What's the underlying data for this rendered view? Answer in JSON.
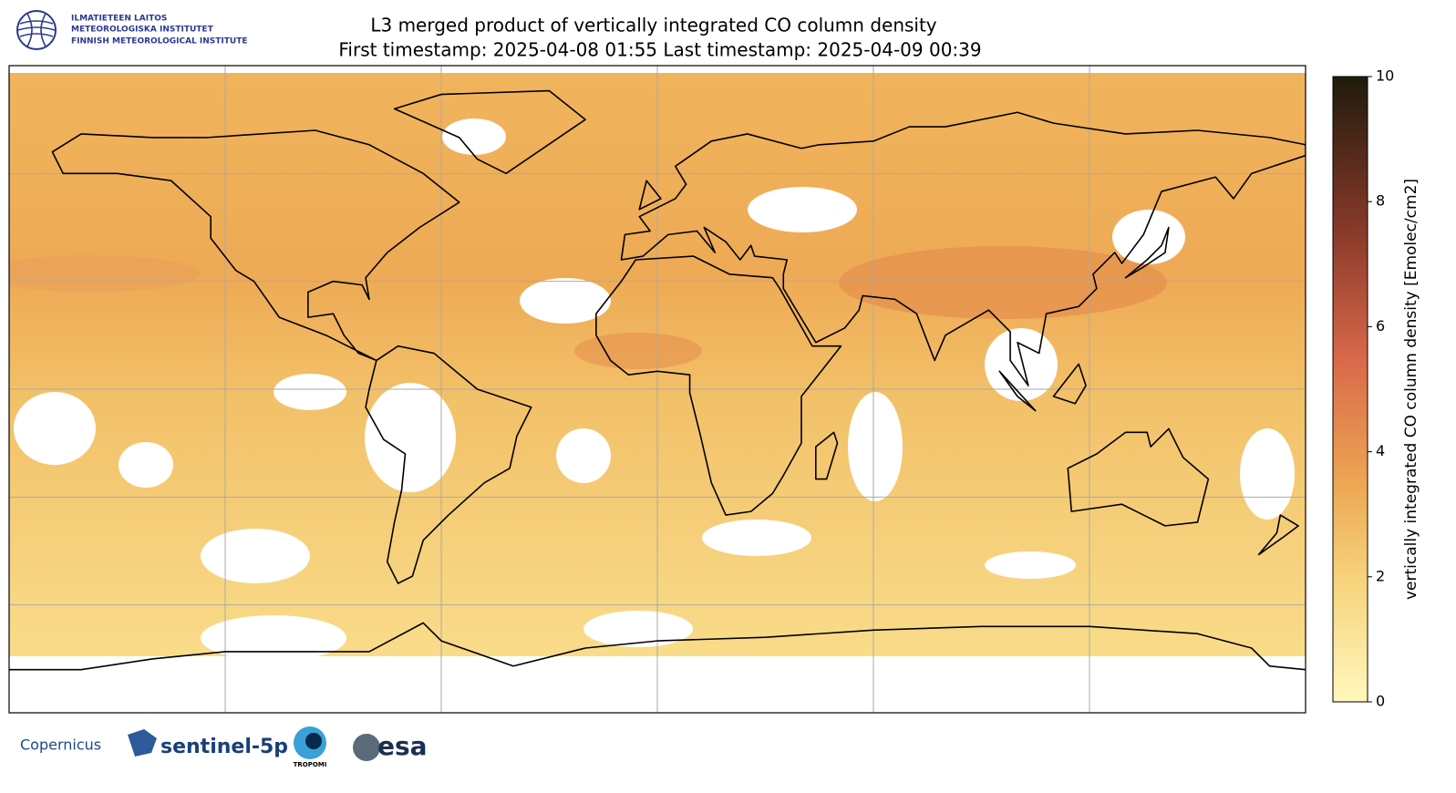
{
  "header": {
    "logo_lines": [
      "ILMATIETEEN LAITOS",
      "METEOROLOGISKA INSTITUTET",
      "FINNISH METEOROLOGICAL INSTITUTE"
    ],
    "title": "L3 merged product of vertically integrated CO column density",
    "subtitle": "First timestamp: 2025-04-08 01:55   Last timestamp: 2025-04-09 00:39"
  },
  "colorbar": {
    "label": "vertically integrated CO column density [Emolec/cm2]",
    "lim": [
      0,
      10
    ],
    "ticks": [
      0,
      2,
      4,
      6,
      8,
      10
    ]
  },
  "footer": {
    "logos": [
      "Copernicus",
      "sentinel-5p",
      "TROPOMI",
      "esa"
    ]
  }
}
